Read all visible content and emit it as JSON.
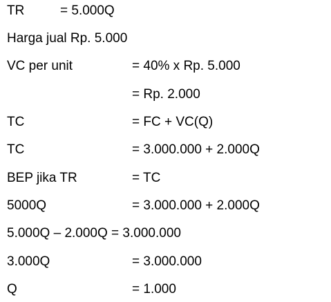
{
  "lines": [
    {
      "label": "TR",
      "value": "= 5.000Q"
    },
    {
      "text": "Harga jual Rp. 5.000"
    },
    {
      "label": "VC per unit",
      "value": "= 40% x Rp. 5.000"
    },
    {
      "label": "",
      "value": "= Rp. 2.000"
    },
    {
      "label": "TC",
      "value": "= FC + VC(Q)"
    },
    {
      "label": "TC",
      "value": "= 3.000.000 + 2.000Q"
    },
    {
      "label": "BEP jika TR",
      "value": "= TC"
    },
    {
      "label": "5000Q",
      "value": "= 3.000.000 + 2.000Q"
    },
    {
      "text": "5.000Q – 2.000Q = 3.000.000"
    },
    {
      "label": "3.000Q",
      "value": "= 3.000.000"
    },
    {
      "label": "Q",
      "value": "= 1.000"
    }
  ]
}
